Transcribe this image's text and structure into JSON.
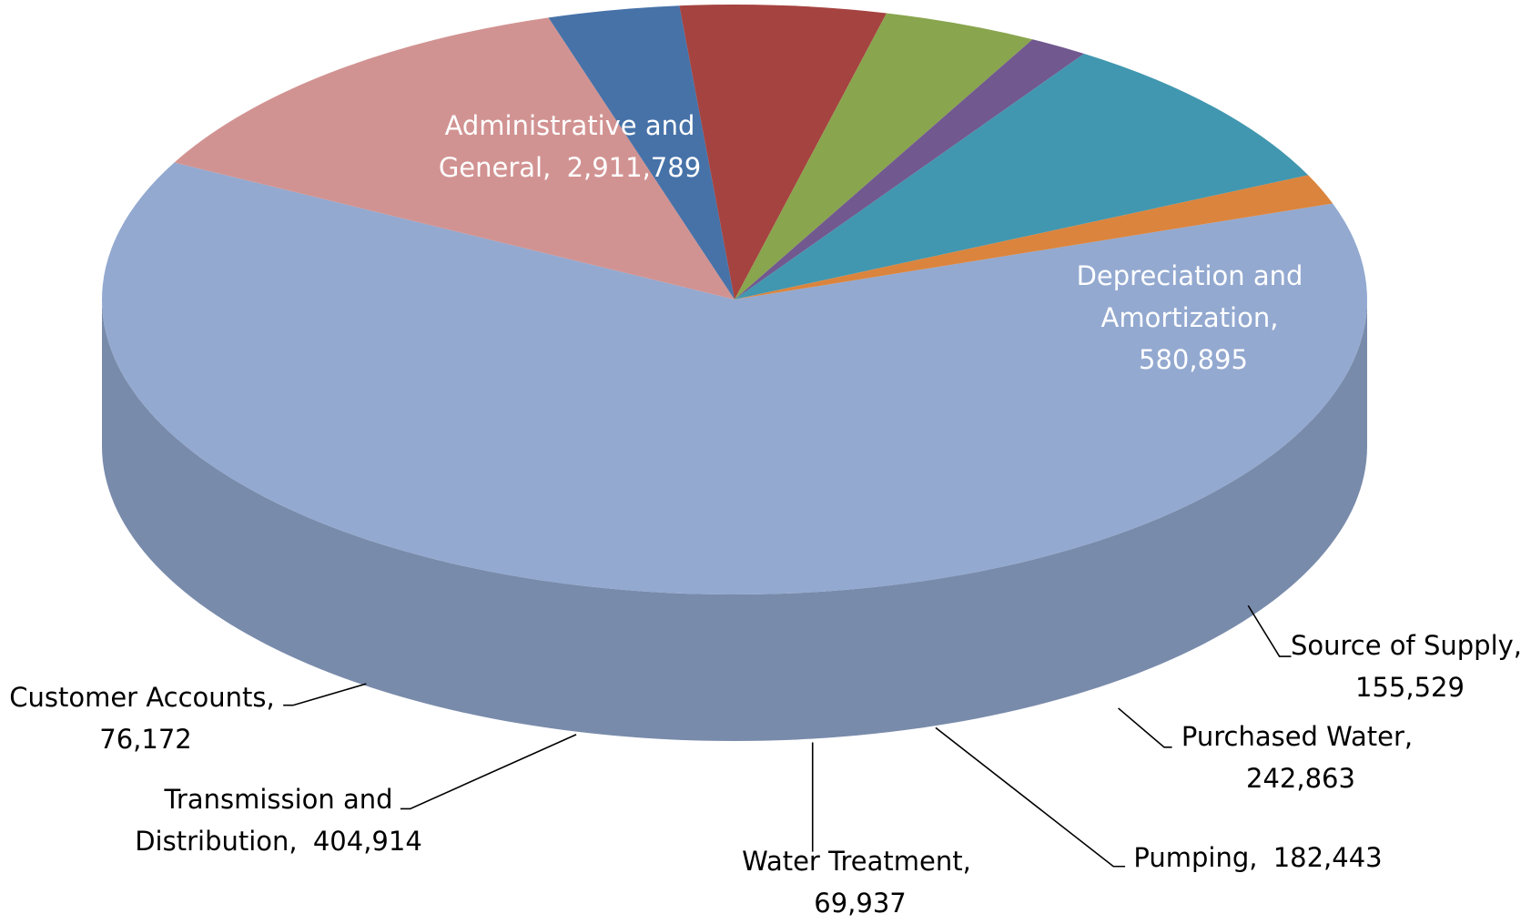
{
  "chart_data": {
    "type": "pie",
    "categories": [
      "Administrative and General,",
      "Depreciation and Amortization,",
      "Source of Supply,",
      "Purchased Water,",
      "Pumping,",
      "Water Treatment,",
      "Transmission and Distribution,",
      "Customer Accounts,"
    ],
    "values": [
      2911789,
      580895,
      155529,
      242863,
      182443,
      69937,
      404914,
      76172
    ],
    "value_labels": [
      "2,911,789",
      "580,895",
      "155,529",
      "242,863",
      "182,443",
      "69,937",
      "404,914",
      "76,172"
    ],
    "colors": [
      "#93a9d0",
      "#d19392",
      "#4672a8",
      "#a54340",
      "#89a54e",
      "#71588f",
      "#4197af",
      "#db843d"
    ]
  }
}
